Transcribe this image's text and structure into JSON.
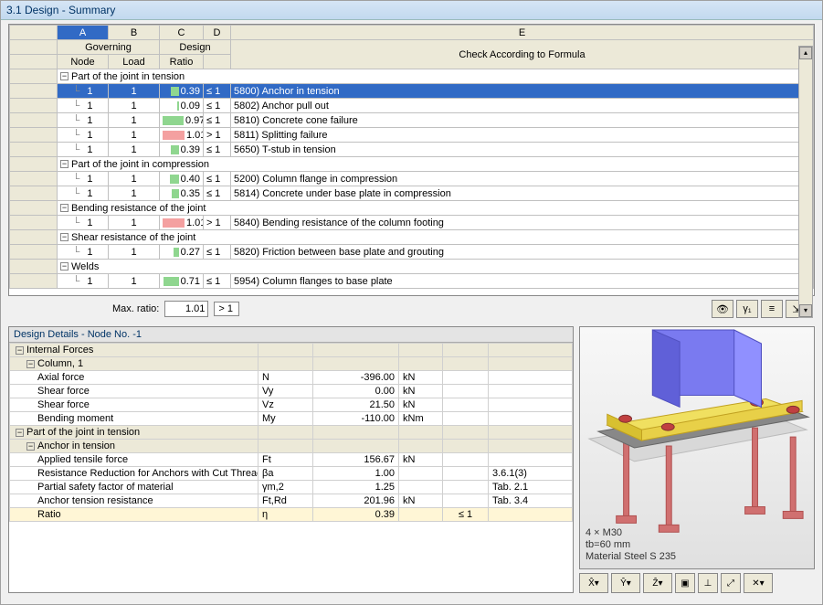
{
  "window": {
    "title": "3.1 Design - Summary"
  },
  "columns": {
    "letters": [
      "A",
      "B",
      "C",
      "D",
      "E"
    ],
    "group1": "Governing",
    "group2": "Design",
    "a": "Node",
    "b": "Load",
    "c": "Ratio",
    "e": "Check According to Formula"
  },
  "sections": [
    {
      "title": "Part of the joint in tension",
      "rows": [
        {
          "node": "1",
          "load": "1",
          "ratio": "0.39",
          "cmp": "≤ 1",
          "desc": "5800) Anchor in tension",
          "sel": true,
          "bar": 0.39,
          "barClass": "ratio-green"
        },
        {
          "node": "1",
          "load": "1",
          "ratio": "0.09",
          "cmp": "≤ 1",
          "desc": "5802) Anchor pull out",
          "bar": 0.09,
          "barClass": "ratio-green"
        },
        {
          "node": "1",
          "load": "1",
          "ratio": "0.97",
          "cmp": "≤ 1",
          "desc": "5810) Concrete cone failure",
          "bar": 0.97,
          "barClass": "ratio-green"
        },
        {
          "node": "1",
          "load": "1",
          "ratio": "1.01",
          "cmp": "> 1",
          "desc": "5811) Splitting failure",
          "bar": 1.0,
          "barClass": "ratio-red"
        },
        {
          "node": "1",
          "load": "1",
          "ratio": "0.39",
          "cmp": "≤ 1",
          "desc": "5650) T-stub in tension",
          "bar": 0.39,
          "barClass": "ratio-green"
        }
      ]
    },
    {
      "title": "Part of the joint in compression",
      "rows": [
        {
          "node": "1",
          "load": "1",
          "ratio": "0.40",
          "cmp": "≤ 1",
          "desc": "5200) Column flange in compression",
          "bar": 0.4,
          "barClass": "ratio-green"
        },
        {
          "node": "1",
          "load": "1",
          "ratio": "0.35",
          "cmp": "≤ 1",
          "desc": "5814) Concrete under base plate in compression",
          "bar": 0.35,
          "barClass": "ratio-green"
        }
      ]
    },
    {
      "title": "Bending resistance of the joint",
      "rows": [
        {
          "node": "1",
          "load": "1",
          "ratio": "1.01",
          "cmp": "> 1",
          "desc": "5840) Bending resistance of the column footing",
          "bar": 1.0,
          "barClass": "ratio-red"
        }
      ]
    },
    {
      "title": "Shear resistance of the joint",
      "rows": [
        {
          "node": "1",
          "load": "1",
          "ratio": "0.27",
          "cmp": "≤ 1",
          "desc": "5820) Friction between base plate and grouting",
          "bar": 0.27,
          "barClass": "ratio-green"
        }
      ]
    },
    {
      "title": "Welds",
      "rows": [
        {
          "node": "1",
          "load": "1",
          "ratio": "0.71",
          "cmp": "≤ 1",
          "desc": "5954) Column flanges to base plate",
          "bar": 0.71,
          "barClass": "ratio-green"
        }
      ]
    }
  ],
  "maxRatio": {
    "label": "Max. ratio:",
    "value": "1.01",
    "cmp": "> 1"
  },
  "details": {
    "title": "Design Details  -  Node No. -1",
    "sections": [
      {
        "label": "Internal Forces",
        "level": 0,
        "type": "sec"
      },
      {
        "label": "Column, 1",
        "level": 1,
        "type": "sec"
      },
      {
        "label": "Axial force",
        "level": 2,
        "sym": "N",
        "val": "-396.00",
        "unit": "kN"
      },
      {
        "label": "Shear force",
        "level": 2,
        "sym": "Vy",
        "val": "0.00",
        "unit": "kN"
      },
      {
        "label": "Shear force",
        "level": 2,
        "sym": "Vz",
        "val": "21.50",
        "unit": "kN"
      },
      {
        "label": "Bending moment",
        "level": 2,
        "sym": "My",
        "val": "-110.00",
        "unit": "kNm"
      },
      {
        "label": "Part of the joint in tension",
        "level": 0,
        "type": "sec"
      },
      {
        "label": "Anchor in tension",
        "level": 1,
        "type": "sec"
      },
      {
        "label": "Applied tensile force",
        "level": 2,
        "sym": "Ft",
        "val": "156.67",
        "unit": "kN"
      },
      {
        "label": "Resistance Reduction for Anchors with Cut Thread",
        "level": 2,
        "sym": "βa",
        "val": "1.00",
        "ref": "3.6.1(3)"
      },
      {
        "label": "Partial safety factor of material",
        "level": 2,
        "sym": "γm,2",
        "val": "1.25",
        "ref": "Tab. 2.1"
      },
      {
        "label": "Anchor tension resistance",
        "level": 2,
        "sym": "Ft,Rd",
        "val": "201.96",
        "unit": "kN",
        "ref": "Tab. 3.4"
      },
      {
        "label": "Ratio",
        "level": 2,
        "sym": "η",
        "val": "0.39",
        "cmp": "≤ 1",
        "selected": true
      }
    ]
  },
  "viewer": {
    "caption": [
      "4 × M30",
      "tb=60 mm",
      "Material Steel S 235"
    ],
    "colors": {
      "column": "#7a7af0",
      "column_edge": "#5050c0",
      "plate_top": "#f0e060",
      "plate_side": "#d8c030",
      "baseplate": "#888888",
      "anchor": "#d07070",
      "anchor_dark": "#b05050",
      "ground": "#d8d8d8"
    }
  }
}
